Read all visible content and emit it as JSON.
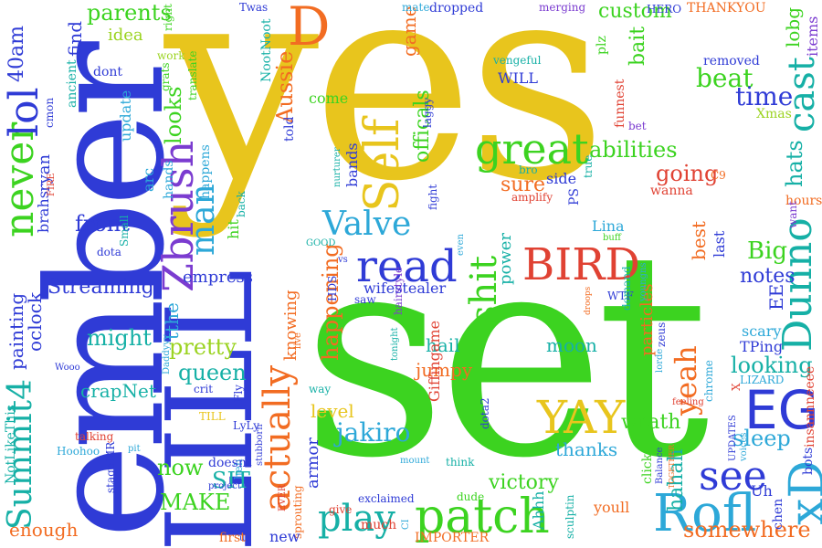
{
  "palette": {
    "yellow": "#e8c51d",
    "green": "#3cd320",
    "blue": "#2f3bd6",
    "lightblue": "#2da8d8",
    "teal": "#16b0a6",
    "orange": "#f26c22",
    "red": "#e04233",
    "purple": "#7b3cd0",
    "lime": "#9bd320",
    "cyan": "#1fb8c9"
  },
  "words": {
    "yes": "yes",
    "set": "set",
    "ember": "ember",
    "lill": "LILL",
    "zbrush": "Zbrush",
    "self": "Self",
    "valve": "Valve",
    "read": "read",
    "bird": "BIRD",
    "great": "great",
    "patch": "patch",
    "rofl": "Rofl",
    "play": "play",
    "actually": "actually",
    "eg": "EG",
    "yay": "YAY",
    "dunno": "Dunno",
    "yeah": "yeah",
    "see": "see",
    "xd": "xD",
    "d": "D",
    "never": "never",
    "lol": "lol",
    "summit4": "Summit4",
    "man": "man",
    "cast": "cast",
    "shit": "shit",
    "abilities": "abilities",
    "going": "going",
    "sure": "sure",
    "beat": "beat",
    "time": "time",
    "custom": "custom",
    "parents": "parents",
    "front": "front",
    "streaming": "Streaming",
    "might": "might",
    "pretty": "pretty",
    "queen": "queen",
    "looking": "looking",
    "sleep": "sleep",
    "notes": "notes",
    "big": "Big",
    "hats": "hats",
    "jakiro": "jakiro",
    "now": "now",
    "make": "MAKE",
    "sit": "SIT",
    "somewhere": "somewhere",
    "hahah": "hahah",
    "happening": "happening",
    "level": "level",
    "armor": "armor",
    "victory": "victory",
    "thanks": "thanks",
    "wrath": "wrath",
    "moon": "moon",
    "hail": "hail",
    "jumpy": "jumpy",
    "aussie": "Aussie",
    "looks": "looks",
    "offical": "officals",
    "game": "game",
    "bait": "bait",
    "lobg": "lobg",
    "items": "items",
    "idea": "idea",
    "find": "find",
    "fortyam": "40am",
    "update": "update",
    "ancient": "ancient",
    "painting": "painting",
    "oclock": "oclock",
    "crapnet": "crapNet",
    "empress": "empress",
    "tthe": "tthe",
    "knowing": "knowing",
    "wifestealer": "wifestealer",
    "power": "power",
    "particles": "particles",
    "best": "best",
    "last": "last",
    "scary": "scary",
    "tping": "TPing",
    "ee": "EE",
    "lizard": "LIZARD",
    "insanneee": "insannneeee",
    "xmas": "Xmas",
    "bet": "bet",
    "removed": "removed",
    "hero": "HERO",
    "thankyou": "THANKYOU",
    "merging": "merging",
    "dropped": "dropped",
    "mate": "mate",
    "twas": "Twas",
    "right": "right",
    "dont": "dont",
    "work": "work",
    "grats": "grats",
    "nootnoot": "NootNoot",
    "translate": "translate",
    "told": "told",
    "come": "come",
    "will": "WILL",
    "vengeful": "vengeful",
    "plz": "plz",
    "funnest": "funnest",
    "laggy": "laggy",
    "bro": "bro",
    "side": "side",
    "amplify": "amplify",
    "fight": "fight",
    "bands": "bands",
    "nurture": "nurturer",
    "ps": "PS",
    "true": "true",
    "wanna": "wanna",
    "c9": "C9",
    "hours": "hours",
    "want": "want",
    "bots": "bots",
    "lina": "Lina",
    "buff": "buff",
    "hit": "hit",
    "back": "back",
    "happens": "happens",
    "hands": "hands",
    "arc": "arc",
    "small": "Small",
    "dota": "dota",
    "brahs": "brahs",
    "ryan": "ryan",
    "cmon": "cmon",
    "fire": "FIRE",
    "good": "GOOD",
    "vs": "vs",
    "hds": "HDS",
    "saw": "saw",
    "hairstyle": "hairstyle",
    "even": "even",
    "wtf": "WTF",
    "demand": "demand",
    "youngns": "youngns",
    "zeus": "zeus",
    "lorde": "lorde",
    "chrome": "chrome",
    "x": "X",
    "updates": "UPDATES",
    "voices": "voices",
    "together": "TOGETHER",
    "uh": "Uh",
    "chen": "chen",
    "feeling": "feeling",
    "balance": "Balance",
    "click": "click",
    "youll": "youll",
    "sculptin": "sculptin",
    "ahhh": "Ahhh",
    "importer": "IMPORTER",
    "dude": "dude",
    "exclaimed": "exclaimed",
    "think": "think",
    "dota2": "dota2",
    "mount": "mount",
    "giffingame": "Giffingame",
    "tonight": "tonight",
    "live": "live",
    "way": "way",
    "stubborn": "stubborn",
    "give": "give",
    "sprouting": "sprouting",
    "new": "new",
    "ever": "EVER",
    "much": "much",
    "us": "us",
    "first": "first",
    "ci": "CI",
    "heh": "heh",
    "doesnt": "doesnt",
    "project": "project",
    "till": "TILL",
    "lyly": "LyLy",
    "fly": "Fly",
    "crit": "crit",
    "daddyy": "Daddyyy",
    "pit": "pit",
    "talking": "talking",
    "mr": "MR",
    "stage": "stage",
    "hoohoo": "Hoohoo",
    "notlikethis": "NotLikeThis",
    "enough": "enough",
    "wooo": "Wooo",
    "droops": "droops"
  }
}
